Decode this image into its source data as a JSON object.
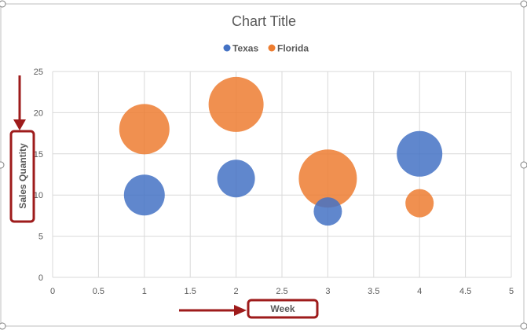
{
  "chart_data": {
    "type": "bubble",
    "title": "Chart Title",
    "xlabel": "Week",
    "ylabel": "Sales Quantity",
    "xlim": [
      0,
      5
    ],
    "ylim": [
      0,
      25
    ],
    "x_ticks": [
      "0",
      "0.5",
      "1",
      "1.5",
      "2",
      "2.5",
      "3",
      "3.5",
      "4",
      "4.5",
      "5"
    ],
    "y_ticks": [
      "0",
      "5",
      "10",
      "15",
      "20",
      "25"
    ],
    "grid": true,
    "legend_position": "top",
    "series": [
      {
        "name": "Texas",
        "color": "#4472C4",
        "points": [
          {
            "x": 1,
            "y": 10,
            "size": 26
          },
          {
            "x": 2,
            "y": 12,
            "size": 24
          },
          {
            "x": 3,
            "y": 8,
            "size": 18
          },
          {
            "x": 4,
            "y": 15,
            "size": 29
          }
        ]
      },
      {
        "name": "Florida",
        "color": "#ED7D31",
        "points": [
          {
            "x": 1,
            "y": 18,
            "size": 32
          },
          {
            "x": 2,
            "y": 21,
            "size": 35
          },
          {
            "x": 3,
            "y": 12,
            "size": 37
          },
          {
            "x": 4,
            "y": 9,
            "size": 18
          }
        ]
      }
    ]
  },
  "annotation_color": "#9E1B1B"
}
